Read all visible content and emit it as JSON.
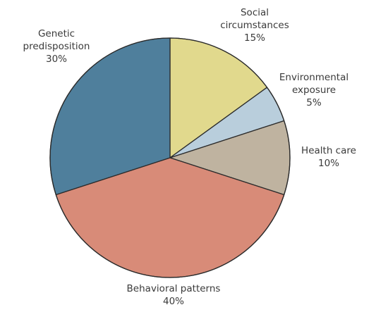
{
  "chart_data": {
    "type": "pie",
    "slices": [
      {
        "name": "Social circumstances",
        "label_lines": [
          "Social",
          "circumstances"
        ],
        "value": 15,
        "value_label": "15%",
        "color": "#e1d98d"
      },
      {
        "name": "Environmental exposure",
        "label_lines": [
          "Environmental",
          "exposure"
        ],
        "value": 5,
        "value_label": "5%",
        "color": "#b9cedc"
      },
      {
        "name": "Health care",
        "label_lines": [
          "Health care"
        ],
        "value": 10,
        "value_label": "10%",
        "color": "#bfb3a0"
      },
      {
        "name": "Behavioral patterns",
        "label_lines": [
          "Behavioral patterns"
        ],
        "value": 40,
        "value_label": "40%",
        "color": "#d88b78"
      },
      {
        "name": "Genetic predisposition",
        "label_lines": [
          "Genetic",
          "predisposition"
        ],
        "value": 30,
        "value_label": "30%",
        "color": "#4f7f9c"
      }
    ],
    "start_angle": "12 o'clock",
    "direction": "clockwise",
    "legend": "none"
  }
}
